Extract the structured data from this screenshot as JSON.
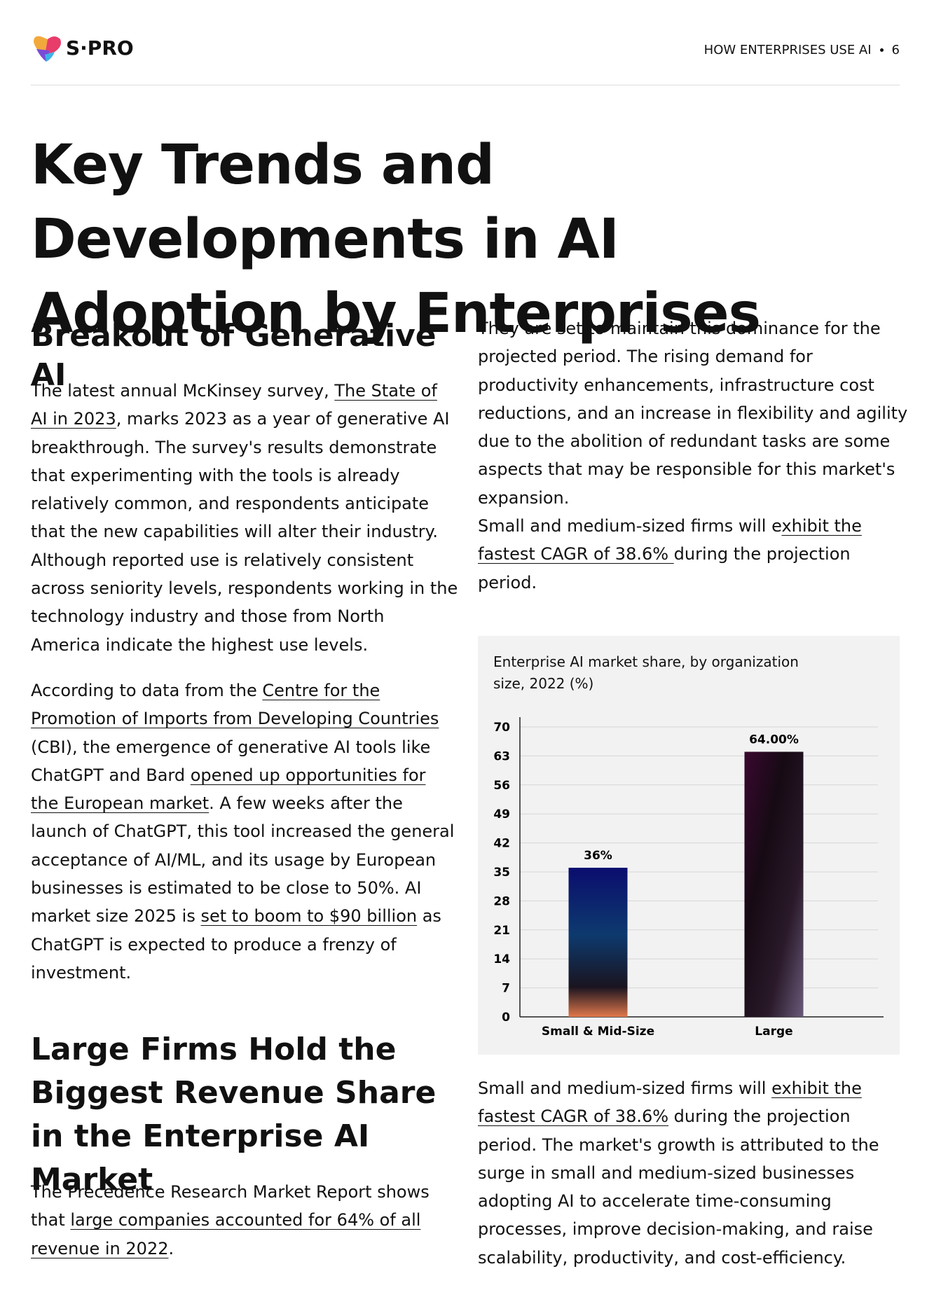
{
  "header": {
    "brand": "S·PRO",
    "section": "HOW ENTERPRISES USE AI",
    "page_number": "6"
  },
  "title": "Key Trends and Developments in AI Adoption by Enterprises",
  "left": {
    "heading_1": "Breakout of Generative AI",
    "paragraph_1": {
      "segments": [
        "The latest annual McKinsey survey, ",
        {
          "text": "The State of AI in 2023",
          "underline": true
        },
        ", marks 2023 as a year of generative AI breakthrough. The survey's results demonstrate that experimenting with the tools is already relatively common, and respondents anticipate that the new capabilities will alter their industry. Although reported use is relatively consistent across seniority levels, respondents working in the technology industry and those from North America indicate the highest use levels."
      ]
    },
    "paragraph_2": {
      "segments": [
        "According to data from the ",
        {
          "text": "Centre for the Promotion of Imports from Developing Countries",
          "underline": true
        },
        " (CBI), the emergence of generative AI tools like ChatGPT and Bard ",
        {
          "text": "opened up opportunities for the European market",
          "underline": true
        },
        ". A few weeks after the launch of ChatGPT, this tool increased the general acceptance of AI/ML, and its usage by European businesses is estimated to be close to 50%. AI market size 2025 is ",
        {
          "text": "set to boom to $90 billion",
          "underline": true
        },
        " as ChatGPT is expected to produce a frenzy of investment."
      ]
    },
    "heading_2": "Large Firms Hold the Biggest Revenue Share in the Enterprise AI Market",
    "paragraph_3": {
      "segments": [
        "The Precedence Research Market Report shows that ",
        {
          "text": "large companies accounted for 64% of all revenue in 2022",
          "underline": true
        },
        "."
      ]
    }
  },
  "right": {
    "paragraph_1": {
      "segments": [
        "They are set to maintain this dominance for the projected period. The rising demand for productivity enhancements, infrastructure cost reductions, and an increase in flexibility and agility due to the abolition of redundant tasks are some aspects that may be responsible for this market's expansion."
      ]
    },
    "paragraph_2": {
      "segments": [
        "Small and medium-sized firms will e",
        {
          "text": "xhibit the fastest CAGR of 38.6% ",
          "underline": true
        },
        "during the projection period."
      ]
    },
    "paragraph_3": {
      "segments": [
        "Small and medium-sized firms will ",
        {
          "text": "exhibit the fastest CAGR of 38.6%",
          "underline": true
        },
        " during the projection period. The market's growth is attributed to the surge in small and medium-sized businesses adopting AI to accelerate time-consuming processes, improve decision-making, and raise scalability, productivity, and cost-efficiency."
      ]
    }
  },
  "chart_data": {
    "type": "bar",
    "title": "Enterprise AI market share, by organization size, 2022 (%)",
    "categories": [
      "Small & Mid-Size",
      "Large"
    ],
    "values": [
      36,
      64
    ],
    "value_labels": [
      "36%",
      "64.00%"
    ],
    "ylim": [
      0,
      70
    ],
    "yticks": [
      0,
      7,
      14,
      21,
      28,
      35,
      42,
      49,
      56,
      63,
      70
    ],
    "grid": true
  }
}
